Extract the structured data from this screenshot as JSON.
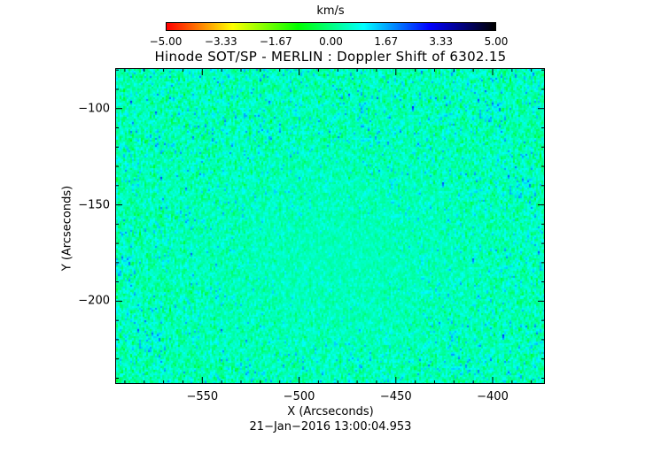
{
  "chart_data": {
    "type": "heatmap",
    "title": "Hinode SOT/SP - MERLIN : Doppler Shift of 6302.15",
    "xlabel": "X (Arcseconds)",
    "ylabel": "Y (Arcseconds)",
    "xlim": [
      -595,
      -373
    ],
    "ylim": [
      -243,
      -79
    ],
    "x_ticks": [
      -550,
      -500,
      -450,
      -400
    ],
    "x_tick_labels": [
      "−550",
      "−500",
      "−450",
      "−400"
    ],
    "y_ticks": [
      -100,
      -150,
      -200
    ],
    "y_tick_labels": [
      "−100",
      "−150",
      "−200"
    ],
    "colorbar": {
      "unit": "km/s",
      "range": [
        -5.0,
        5.0
      ],
      "ticks": [
        -5.0,
        -3.33,
        -1.67,
        0.0,
        1.67,
        3.33,
        5.0
      ],
      "tick_labels": [
        "−5.00",
        "−3.33",
        "−1.67",
        "0.00",
        "1.67",
        "3.33",
        "5.00"
      ],
      "colormap": [
        "#ff0000",
        "#ffff00",
        "#00ff00",
        "#00ffff",
        "#0000ff",
        "#000000"
      ]
    },
    "timestamp": "21−Jan−2016 13:00:04.953",
    "field_description": "noisy granulation Doppler map, values mostly between -1.67 and 3.33 km/s"
  }
}
